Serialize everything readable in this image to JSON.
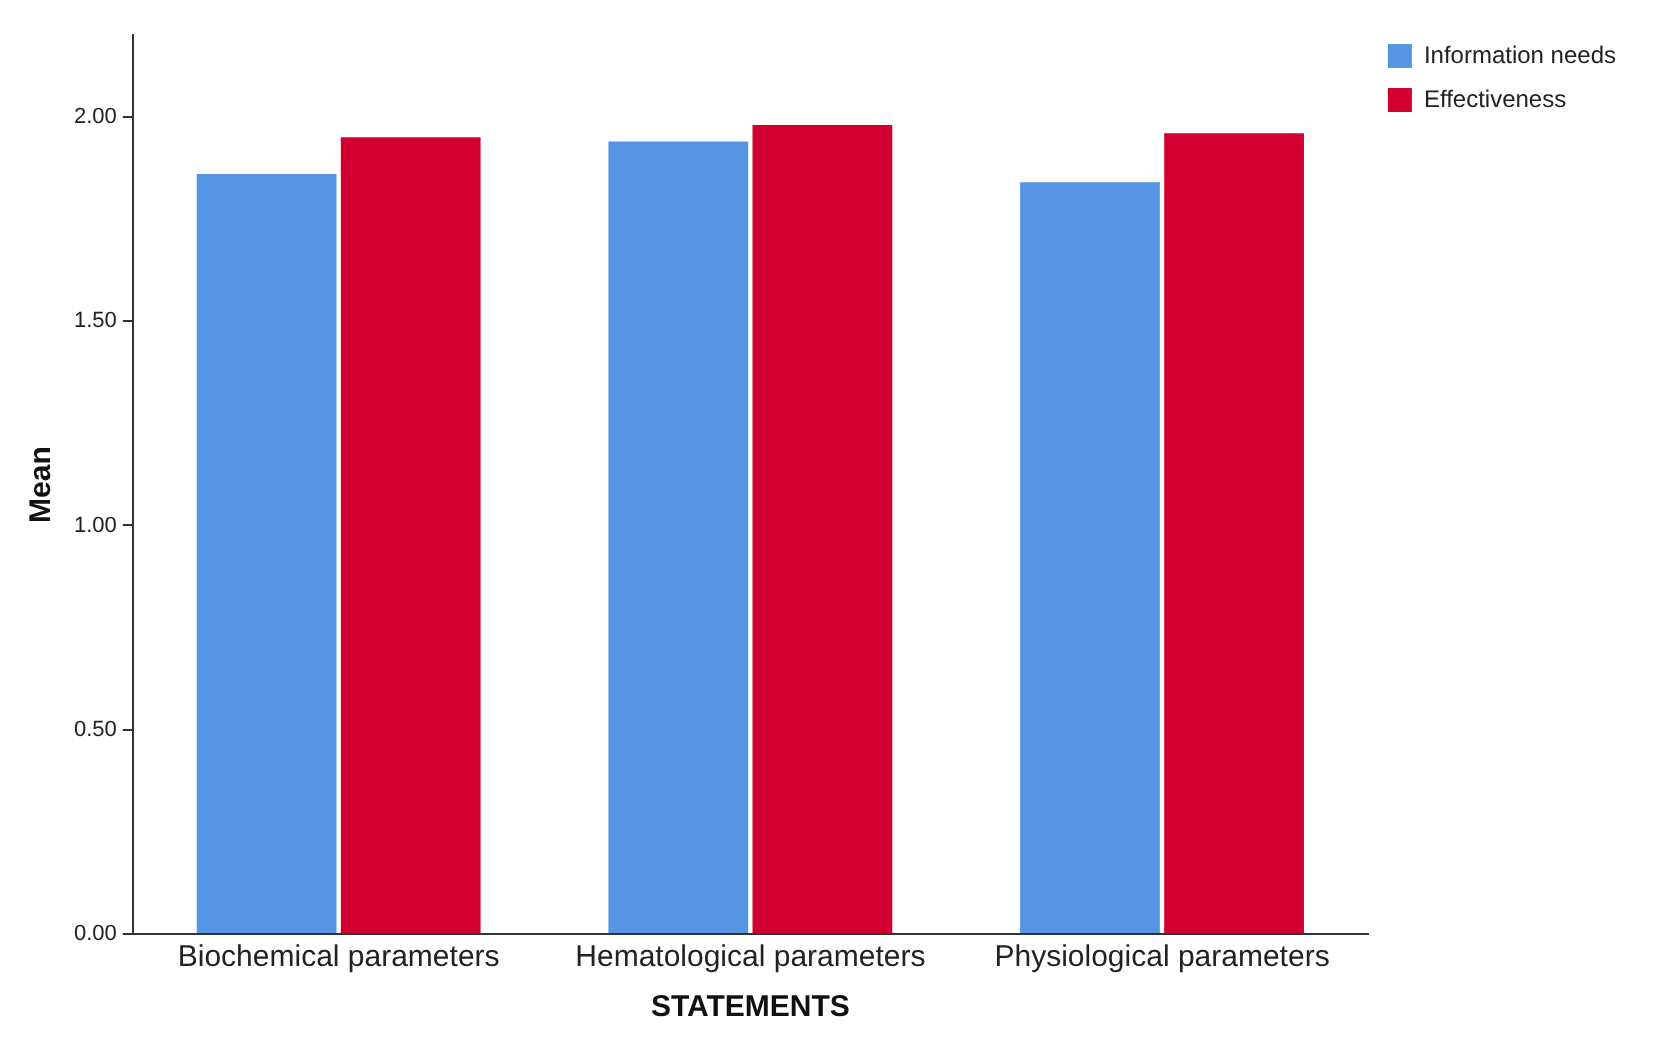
{
  "chart_data": {
    "type": "bar",
    "xlabel": "STATEMENTS",
    "ylabel": "Mean",
    "categories": [
      "Biochemical parameters",
      "Hematological parameters",
      "Physiological parameters"
    ],
    "series": [
      {
        "name": "Information needs",
        "color": "#5595e3",
        "values": [
          1.86,
          1.94,
          1.84
        ]
      },
      {
        "name": "Effectiveness",
        "color": "#d20030",
        "values": [
          1.95,
          1.98,
          1.96
        ]
      }
    ],
    "ylim": [
      0,
      2.2
    ],
    "yticks": [
      {
        "value": 0,
        "label": "0.00"
      },
      {
        "value": 0.5,
        "label": "0.50"
      },
      {
        "value": 1,
        "label": "1.00"
      },
      {
        "value": 1.5,
        "label": "1.50"
      },
      {
        "value": 2,
        "label": "2.00"
      }
    ],
    "grid": false,
    "legend": "top right"
  }
}
